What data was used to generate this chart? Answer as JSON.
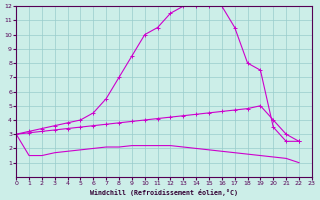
{
  "background_color": "#cceee8",
  "grid_color": "#99cccc",
  "line_color": "#cc00cc",
  "xlabel": "Windchill (Refroidissement éolien,°C)",
  "xlim": [
    0,
    23
  ],
  "ylim": [
    0,
    12
  ],
  "xticks": [
    0,
    1,
    2,
    3,
    4,
    5,
    6,
    7,
    8,
    9,
    10,
    11,
    12,
    13,
    14,
    15,
    16,
    17,
    18,
    19,
    20,
    21,
    22,
    23
  ],
  "yticks": [
    1,
    2,
    3,
    4,
    5,
    6,
    7,
    8,
    9,
    10,
    11,
    12
  ],
  "line1_x": [
    0,
    1,
    2,
    3,
    4,
    5,
    6,
    7,
    8,
    9,
    10,
    11,
    12,
    13,
    14,
    15,
    16,
    17,
    18,
    19,
    20,
    21,
    22
  ],
  "line1_y": [
    3.0,
    3.2,
    3.4,
    3.6,
    3.8,
    4.0,
    4.5,
    5.5,
    7.0,
    8.5,
    10.0,
    10.5,
    11.5,
    12.0,
    12.0,
    12.0,
    12.0,
    10.5,
    8.0,
    7.5,
    3.5,
    2.5,
    2.5
  ],
  "line2_x": [
    0,
    1,
    2,
    3,
    4,
    5,
    6,
    7,
    8,
    9,
    10,
    11,
    12,
    13,
    14,
    15,
    16,
    17,
    18,
    19,
    20,
    21,
    22
  ],
  "line2_y": [
    3.0,
    3.1,
    3.2,
    3.3,
    3.4,
    3.5,
    3.6,
    3.7,
    3.8,
    3.9,
    4.0,
    4.1,
    4.2,
    4.3,
    4.4,
    4.5,
    4.6,
    4.7,
    4.8,
    5.0,
    4.0,
    3.0,
    2.5
  ],
  "line3_x": [
    0,
    1,
    2,
    3,
    4,
    5,
    6,
    7,
    8,
    9,
    10,
    11,
    12,
    13,
    14,
    15,
    16,
    17,
    18,
    19,
    20,
    21,
    22
  ],
  "line3_y": [
    3.0,
    1.5,
    1.5,
    1.7,
    1.8,
    1.9,
    2.0,
    2.1,
    2.1,
    2.2,
    2.2,
    2.2,
    2.2,
    2.1,
    2.0,
    1.9,
    1.8,
    1.7,
    1.6,
    1.5,
    1.4,
    1.3,
    1.0
  ]
}
